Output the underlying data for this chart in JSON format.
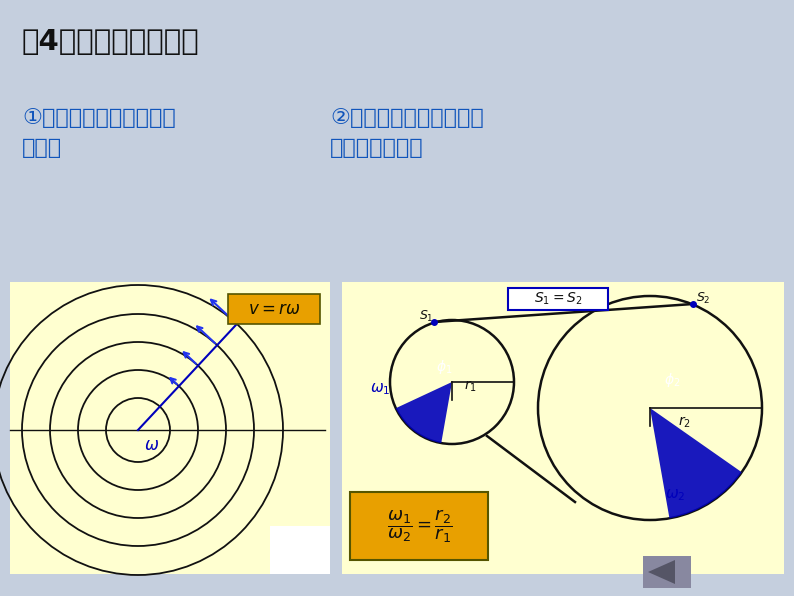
{
  "bg_color": "#c5cfde",
  "title": "（4）两个有用的结论",
  "subtitle1": "①同一转盘上各点的角速\n度相同",
  "subtitle2": "②同一皮带轮缘上各点的\n线速度大小相等",
  "subtitle_color": "#1155bb",
  "panel_bg": "#ffffd0",
  "formula_bg": "#e8a000",
  "blue": "#0000bb",
  "arrow_blue": "#2233ee",
  "black": "#111111",
  "white": "#ffffff",
  "nav_gray": "#8888a0"
}
